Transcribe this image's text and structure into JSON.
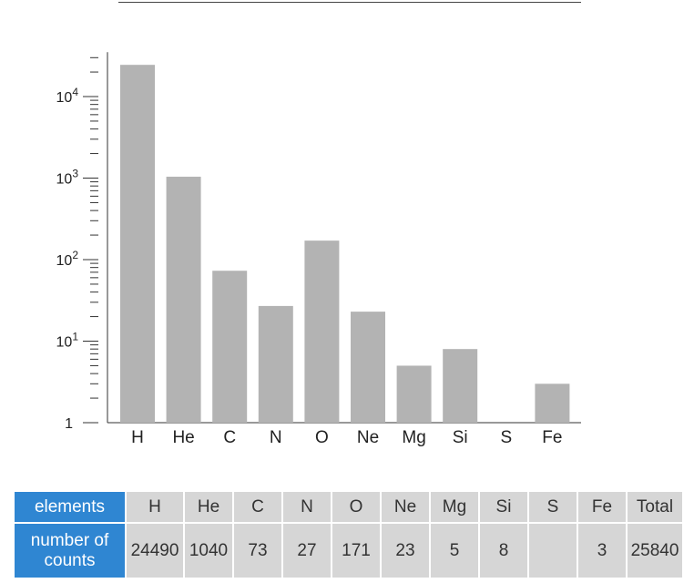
{
  "chart_data": {
    "type": "bar",
    "yscale": "log",
    "ylim": [
      1,
      30000
    ],
    "categories": [
      "H",
      "He",
      "C",
      "N",
      "O",
      "Ne",
      "Mg",
      "Si",
      "S",
      "Fe"
    ],
    "values": [
      24490,
      1040,
      73,
      27,
      171,
      23,
      5,
      8,
      null,
      3
    ],
    "yticks": [
      {
        "value": 1,
        "base": "1",
        "exp": ""
      },
      {
        "value": 10,
        "base": "10",
        "exp": "1"
      },
      {
        "value": 100,
        "base": "10",
        "exp": "2"
      },
      {
        "value": 1000,
        "base": "10",
        "exp": "3"
      },
      {
        "value": 10000,
        "base": "10",
        "exp": "4"
      }
    ],
    "bar_color": "#b3b3b3",
    "title": "",
    "xlabel": "",
    "ylabel": ""
  },
  "table": {
    "header_label": "elements",
    "count_label_line1": "number of",
    "count_label_line2": "counts",
    "columns": [
      "H",
      "He",
      "C",
      "N",
      "O",
      "Ne",
      "Mg",
      "Si",
      "S",
      "Fe",
      "Total"
    ],
    "counts": [
      "24490",
      "1040",
      "73",
      "27",
      "171",
      "23",
      "5",
      "8",
      "",
      "3",
      "25840"
    ],
    "header_color": "#2f86d2",
    "cell_color": "#d6d6d6"
  }
}
